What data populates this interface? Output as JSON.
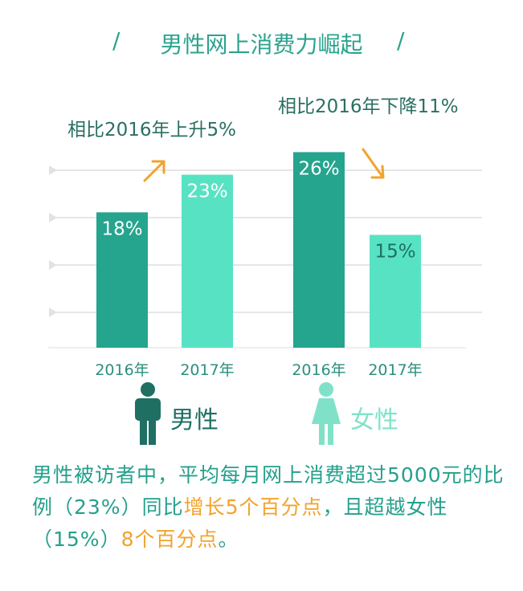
{
  "title": "男性网上消费力崛起",
  "title_decoration": "/",
  "notes": {
    "male": "相比2016年上升5%",
    "female": "相比2016年下降11%"
  },
  "legend": {
    "male_label": "男性",
    "female_label": "女性",
    "male_icon": "male-person-icon",
    "female_icon": "female-person-icon"
  },
  "summary": {
    "part1": "男性被访者中，平均每月网上消费超过5000元的比例（23%）同比",
    "highlight1": "增长5个百分点",
    "part2": "，且超越女性（15%）",
    "highlight2": "8个百分点",
    "part3": "。"
  },
  "colors": {
    "dark_teal": "#25a48e",
    "light_teal": "#57e3c3",
    "title_green": "#2aa38e",
    "male_icon": "#1f6f63",
    "female_icon": "#7fe2c8",
    "arrow_orange": "#f2a32c",
    "grid": "#e6e6e6"
  },
  "chart_data": {
    "type": "bar",
    "groups": [
      "男性",
      "女性"
    ],
    "categories": [
      "2016年",
      "2017年",
      "2016年",
      "2017年"
    ],
    "values": [
      18,
      23,
      26,
      15
    ],
    "labels": [
      "18%",
      "23%",
      "26%",
      "15%"
    ],
    "group_of_bar": [
      "男性",
      "男性",
      "女性",
      "女性"
    ],
    "ylim": [
      0,
      30
    ],
    "grid": true,
    "trend_arrows": [
      "up",
      "down"
    ]
  }
}
